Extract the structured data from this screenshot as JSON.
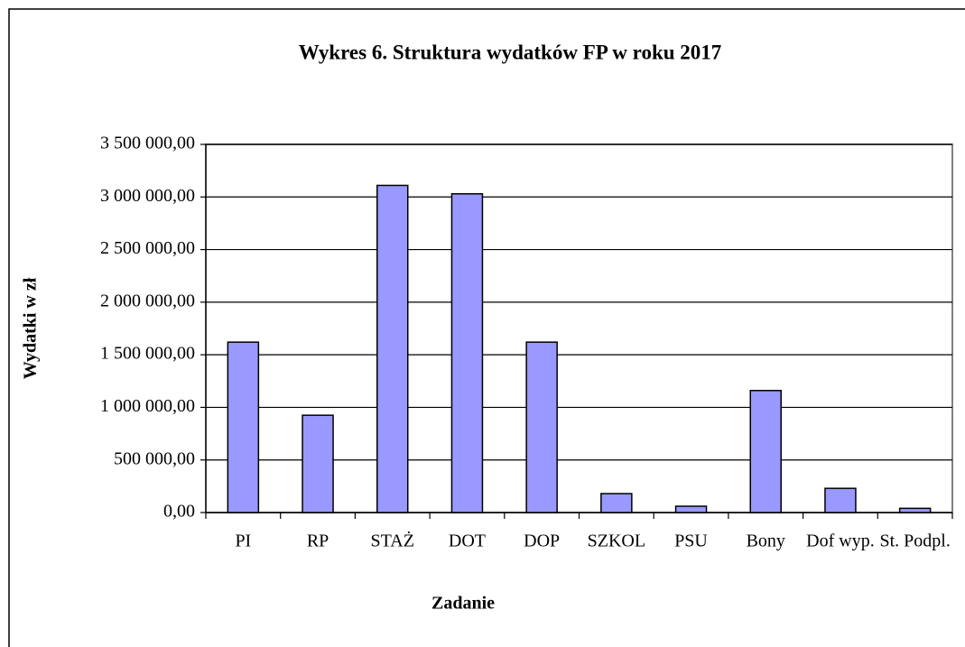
{
  "chart_data": {
    "type": "bar",
    "title": "Wykres 6.  Struktura wydatków FP w roku 2017",
    "x_label": "Zadanie",
    "y_label": "Wydatki w zł",
    "categories": [
      "PI",
      "RP",
      "STAŻ",
      "DOT",
      "DOP",
      "SZKOL",
      "PSU",
      "Bony",
      "Dof wyp.",
      "St. Podpl."
    ],
    "values": [
      1620000,
      925000,
      3110000,
      3030000,
      1620000,
      180000,
      60000,
      1160000,
      230000,
      40000
    ],
    "color": "#9999ff",
    "ylim": [
      0,
      3500000
    ],
    "yticks": [
      {
        "value": 0,
        "label": "0,00"
      },
      {
        "value": 500000,
        "label": "500 000,00"
      },
      {
        "value": 1000000,
        "label": "1 000 000,00"
      },
      {
        "value": 1500000,
        "label": "1 500 000,00"
      },
      {
        "value": 2000000,
        "label": "2 000 000,00"
      },
      {
        "value": 2500000,
        "label": "2 500 000,00"
      },
      {
        "value": 3000000,
        "label": "3 000 000,00"
      },
      {
        "value": 3500000,
        "label": "3 500 000,00"
      }
    ],
    "grid": true
  }
}
